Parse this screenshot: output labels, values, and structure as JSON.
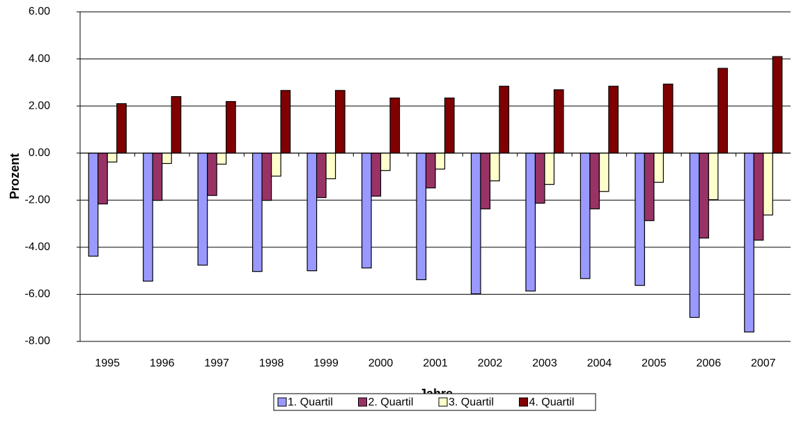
{
  "chart_data": {
    "type": "bar",
    "x_label": "Jahre",
    "y_label": "Prozent",
    "categories": [
      "1995",
      "1996",
      "1997",
      "1998",
      "1999",
      "2000",
      "2001",
      "2002",
      "2003",
      "2004",
      "2005",
      "2006",
      "2007"
    ],
    "series": [
      {
        "name": "1. Quartil",
        "color": "#9999ff",
        "values": [
          -4.38,
          -5.44,
          -4.76,
          -5.03,
          -5.0,
          -4.88,
          -5.38,
          -5.98,
          -5.86,
          -5.33,
          -5.62,
          -6.98,
          -7.6
        ]
      },
      {
        "name": "2. Quartil",
        "color": "#993366",
        "values": [
          -2.16,
          -2.01,
          -1.8,
          -2.01,
          -1.89,
          -1.83,
          -1.48,
          -2.37,
          -2.13,
          -2.37,
          -2.87,
          -3.61,
          -3.7
        ]
      },
      {
        "name": "3. Quartil",
        "color": "#ffffcc",
        "values": [
          -0.38,
          -0.44,
          -0.47,
          -0.98,
          -1.09,
          -0.74,
          -0.68,
          -1.18,
          -1.33,
          -1.63,
          -1.24,
          -1.98,
          -2.63
        ]
      },
      {
        "name": "4. Quartil",
        "color": "#800000",
        "values": [
          2.1,
          2.4,
          2.19,
          2.66,
          2.66,
          2.34,
          2.34,
          2.84,
          2.69,
          2.84,
          2.93,
          3.6,
          4.1
        ]
      }
    ],
    "ylim": [
      -8,
      6
    ],
    "yticks": [
      {
        "value": -8,
        "label": "-8.00"
      },
      {
        "value": -6,
        "label": "-6.00"
      },
      {
        "value": -4,
        "label": "-4.00"
      },
      {
        "value": -2,
        "label": "-2.00"
      },
      {
        "value": 0,
        "label": "0.00"
      },
      {
        "value": 2,
        "label": "2.00"
      },
      {
        "value": 4,
        "label": "4.00"
      },
      {
        "value": 6,
        "label": "6.00"
      }
    ],
    "grid": true,
    "legend": "bottom"
  }
}
